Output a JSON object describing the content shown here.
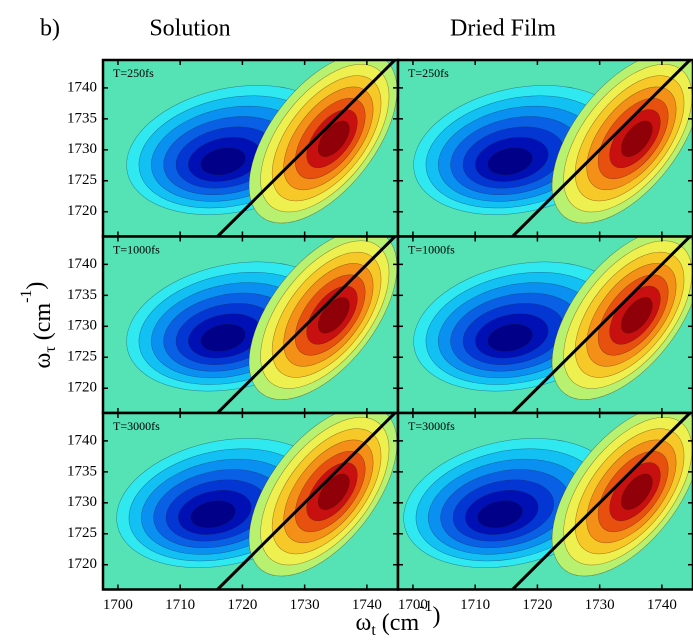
{
  "chart_data": {
    "type": "contour",
    "panel_label": "b)",
    "column_titles": [
      "Solution",
      "Dried Film"
    ],
    "xlabel": [
      "ω",
      "t",
      " (cm",
      "-1",
      ")"
    ],
    "ylabel": [
      "ω",
      "τ",
      " (cm",
      "-1",
      ")"
    ],
    "xlim": [
      1697.6,
      1745
    ],
    "ylim": [
      1716,
      1744.5
    ],
    "xticks": [
      1700,
      1710,
      1720,
      1730,
      1740
    ],
    "yticks": [
      1720,
      1725,
      1730,
      1735,
      1740
    ],
    "diagonal": true,
    "background": "#55e2b4",
    "negative_colors": [
      "#30e8f0",
      "#12c0f4",
      "#0a90f0",
      "#0a60e4",
      "#0436d4",
      "#0010b4",
      "#000088"
    ],
    "positive_colors": [
      "#b8f070",
      "#eef050",
      "#f6c828",
      "#f49018",
      "#e85010",
      "#c81010",
      "#900008"
    ],
    "rows": [
      {
        "annotation": [
          "T=250fs",
          "T=250fs"
        ]
      },
      {
        "annotation": [
          "T=1000fs",
          "T=1000fs"
        ]
      },
      {
        "annotation": [
          "T=3000fs",
          "T=3000fs"
        ]
      }
    ]
  }
}
